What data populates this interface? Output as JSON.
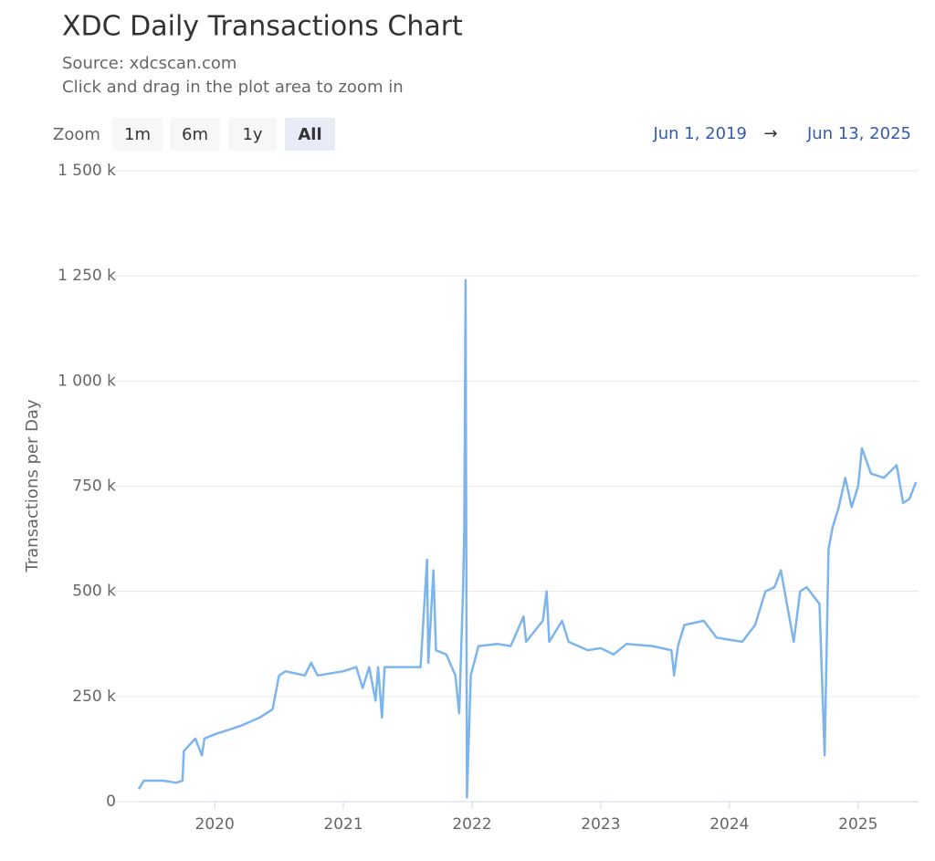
{
  "chart_data": {
    "type": "line",
    "title": "XDC Daily Transactions Chart",
    "subtitle": "Source: xdcscan.com",
    "note": "Click and drag in the plot area to zoom in",
    "zoom_label": "Zoom",
    "zoom_buttons": [
      "1m",
      "6m",
      "1y",
      "All"
    ],
    "range_from": "Jun 1, 2019",
    "range_arrow": "→",
    "range_to": "Jun 13, 2025",
    "y_label": "Transactions per Day",
    "grid": true,
    "xlim": [
      2019.41,
      2025.47
    ],
    "xticks": [
      2020,
      2021,
      2022,
      2023,
      2024,
      2025
    ],
    "ylim": [
      0,
      1500000
    ],
    "yticks": [
      0,
      {
        "value": 250000,
        "label": "250 k"
      },
      {
        "value": 500000,
        "label": "500 k"
      },
      {
        "value": 750000,
        "label": "750 k"
      },
      {
        "value": 1000000,
        "label": "1 000 k"
      },
      {
        "value": 1250000,
        "label": "1 250 k"
      },
      {
        "value": 1500000,
        "label": "1 500 k"
      }
    ],
    "x": [
      2019.41,
      2019.45,
      2019.6,
      2019.7,
      2019.75,
      2019.76,
      2019.85,
      2019.9,
      2019.92,
      2020.0,
      2020.2,
      2020.35,
      2020.45,
      2020.5,
      2020.55,
      2020.7,
      2020.75,
      2020.8,
      2021.0,
      2021.1,
      2021.15,
      2021.2,
      2021.25,
      2021.27,
      2021.3,
      2021.32,
      2021.6,
      2021.65,
      2021.66,
      2021.7,
      2021.72,
      2021.8,
      2021.87,
      2021.9,
      2021.93,
      2021.94,
      2021.95,
      2021.96,
      2021.99,
      2022.05,
      2022.2,
      2022.3,
      2022.4,
      2022.42,
      2022.55,
      2022.58,
      2022.6,
      2022.7,
      2022.75,
      2022.9,
      2023.0,
      2023.1,
      2023.2,
      2023.4,
      2023.55,
      2023.57,
      2023.6,
      2023.65,
      2023.8,
      2023.9,
      2024.0,
      2024.1,
      2024.2,
      2024.28,
      2024.35,
      2024.4,
      2024.5,
      2024.55,
      2024.6,
      2024.7,
      2024.74,
      2024.77,
      2024.8,
      2024.85,
      2024.9,
      2024.95,
      2025.0,
      2025.03,
      2025.1,
      2025.2,
      2025.3,
      2025.35,
      2025.4,
      2025.45
    ],
    "series": [
      {
        "name": "Transactions per Day",
        "color": "#7cb5ec",
        "values": [
          30000,
          50000,
          50000,
          45000,
          50000,
          120000,
          150000,
          110000,
          150000,
          160000,
          180000,
          200000,
          220000,
          300000,
          310000,
          300000,
          330000,
          300000,
          310000,
          320000,
          270000,
          320000,
          240000,
          320000,
          200000,
          320000,
          320000,
          575000,
          330000,
          550000,
          360000,
          350000,
          300000,
          210000,
          500000,
          650000,
          1240000,
          10000,
          300000,
          370000,
          375000,
          370000,
          440000,
          380000,
          430000,
          500000,
          380000,
          430000,
          380000,
          360000,
          365000,
          350000,
          375000,
          370000,
          360000,
          300000,
          370000,
          420000,
          430000,
          390000,
          385000,
          380000,
          420000,
          500000,
          510000,
          550000,
          380000,
          500000,
          510000,
          470000,
          110000,
          600000,
          650000,
          700000,
          770000,
          700000,
          750000,
          840000,
          780000,
          770000,
          800000,
          710000,
          720000,
          760000
        ]
      }
    ]
  }
}
